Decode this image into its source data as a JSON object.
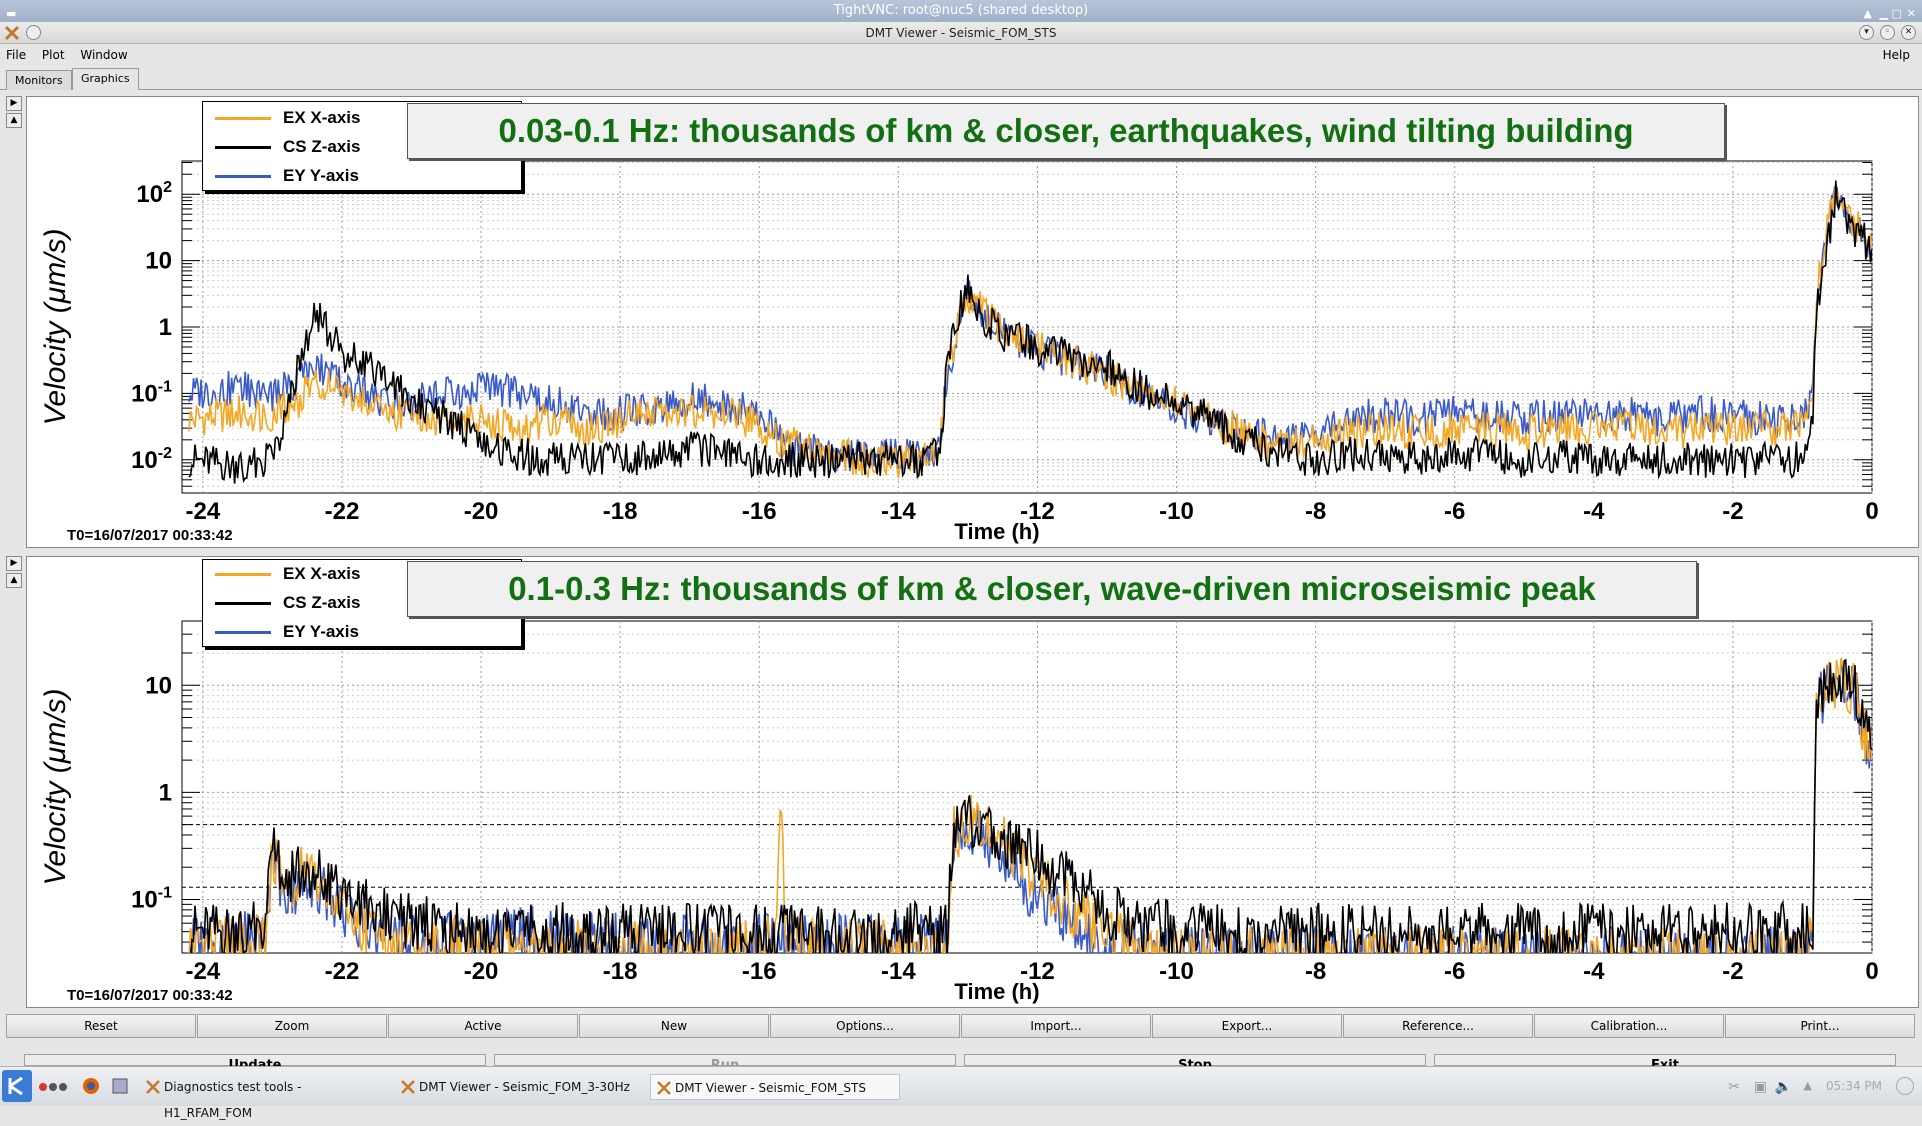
{
  "vnc_title": "TightVNC: root@nuc5 (shared desktop)",
  "window_title": "DMT Viewer - Seismic_FOM_STS",
  "menu": {
    "file": "File",
    "plot": "Plot",
    "window": "Window",
    "help": "Help"
  },
  "tabs": {
    "monitors": "Monitors",
    "graphics": "Graphics"
  },
  "legend": [
    {
      "label": "EX X-axis",
      "color": "#f5a623"
    },
    {
      "label": "CS Z-axis",
      "color": "#000000"
    },
    {
      "label": "EY Y-axis",
      "color": "#3a5bc7"
    }
  ],
  "top_plot": {
    "title": "0.03-0.1 Hz: thousands of km & closer, earthquakes, wind tilting building",
    "ylabel": "Velocity  (μm/s)",
    "xlabel": "Time (h)",
    "t0": "T0=16/07/2017 00:33:42",
    "y_ticks": [
      "10^-2",
      "10^-1",
      "1",
      "10",
      "10^2"
    ],
    "x_ticks": [
      "-24",
      "-22",
      "-20",
      "-18",
      "-16",
      "-14",
      "-12",
      "-10",
      "-8",
      "-6",
      "-4",
      "-2",
      "0"
    ]
  },
  "bottom_plot": {
    "title": "0.1-0.3 Hz: thousands of km & closer, wave-driven microseismic peak",
    "ylabel": "Velocity  (μm/s)",
    "xlabel": "Time (h)",
    "t0": "T0=16/07/2017 00:33:42",
    "y_ticks": [
      "10^-1",
      "1",
      "10"
    ],
    "x_ticks": [
      "-24",
      "-22",
      "-20",
      "-18",
      "-16",
      "-14",
      "-12",
      "-10",
      "-8",
      "-6",
      "-4",
      "-2",
      "0"
    ]
  },
  "buttons": {
    "reset": "Reset",
    "zoom": "Zoom",
    "active": "Active",
    "new": "New",
    "options": "Options...",
    "import": "Import...",
    "export": "Export...",
    "reference": "Reference...",
    "calibration": "Calibration...",
    "print": "Print..."
  },
  "buttons2": {
    "update": "Update",
    "run": "Run",
    "stop": "Stop",
    "exit": "Exit"
  },
  "taskbar": {
    "task1": "Diagnostics test tools - H1_RFAM_FOM",
    "task2": "DMT Viewer - Seismic_FOM_3-30Hz",
    "task3": "DMT Viewer - Seismic_FOM_STS",
    "clock": "05:34 PM"
  },
  "chart_data": [
    {
      "type": "line",
      "title": "0.03-0.1 Hz: thousands of km & closer, earthquakes, wind tilting building",
      "xlabel": "Time (h)",
      "ylabel": "Velocity (μm/s)",
      "xlim": [
        -24.3,
        0
      ],
      "ylim_log10": [
        -2.5,
        2.5
      ],
      "y_scale": "log",
      "grid": true,
      "legend_position": "top-left",
      "series": [
        {
          "name": "EX X-axis",
          "color": "#f5a623",
          "x": [
            -24.2,
            -23.5,
            -23,
            -22.6,
            -22.4,
            -22,
            -21.5,
            -21,
            -20.5,
            -20,
            -19.5,
            -19,
            -18.5,
            -18,
            -17.5,
            -17,
            -16.5,
            -16,
            -15.7,
            -15.5,
            -15,
            -14.5,
            -14,
            -13.6,
            -13.4,
            -13.3,
            -13.1,
            -13.0,
            -12.8,
            -12.5,
            -12.0,
            -11.5,
            -11.0,
            -10.5,
            -10.0,
            -9.5,
            -9.0,
            -8.5,
            -8.0,
            -7.5,
            -7.0,
            -6.5,
            -6.0,
            -5.5,
            -5.0,
            -4.5,
            -4.0,
            -3.5,
            -3.0,
            -2.5,
            -2.0,
            -1.5,
            -1.0,
            -0.85,
            -0.8,
            -0.6,
            -0.5,
            -0.4,
            -0.2,
            0
          ],
          "y": [
            0.04,
            0.05,
            0.05,
            0.08,
            0.15,
            0.1,
            0.06,
            0.05,
            0.04,
            0.04,
            0.03,
            0.04,
            0.03,
            0.04,
            0.05,
            0.05,
            0.05,
            0.035,
            0.02,
            0.02,
            0.012,
            0.01,
            0.01,
            0.012,
            0.015,
            0.2,
            1.5,
            3,
            2,
            0.8,
            0.5,
            0.3,
            0.2,
            0.1,
            0.07,
            0.04,
            0.025,
            0.015,
            0.02,
            0.025,
            0.03,
            0.025,
            0.03,
            0.03,
            0.025,
            0.03,
            0.03,
            0.03,
            0.025,
            0.03,
            0.03,
            0.03,
            0.03,
            0.1,
            3,
            50,
            150,
            60,
            30,
            15
          ]
        },
        {
          "name": "CS Z-axis",
          "color": "#000000",
          "x": [
            -24.2,
            -23.5,
            -23,
            -22.6,
            -22.4,
            -22,
            -21.5,
            -21,
            -20.5,
            -20,
            -19.5,
            -19,
            -18.5,
            -18,
            -17.5,
            -17,
            -16.5,
            -16,
            -15.7,
            -15.5,
            -15,
            -14.5,
            -14,
            -13.6,
            -13.4,
            -13.3,
            -13.1,
            -13.0,
            -12.8,
            -12.5,
            -12.0,
            -11.5,
            -11.0,
            -10.5,
            -10.0,
            -9.5,
            -9.0,
            -8.5,
            -8.0,
            -7.5,
            -7.0,
            -6.5,
            -6.0,
            -5.5,
            -5.0,
            -4.5,
            -4.0,
            -3.5,
            -3.0,
            -2.5,
            -2.0,
            -1.5,
            -1.0,
            -0.85,
            -0.8,
            -0.6,
            -0.5,
            -0.4,
            -0.2,
            0
          ],
          "y": [
            0.01,
            0.008,
            0.01,
            0.3,
            1.8,
            0.4,
            0.2,
            0.08,
            0.04,
            0.02,
            0.012,
            0.01,
            0.01,
            0.01,
            0.012,
            0.015,
            0.012,
            0.01,
            0.01,
            0.01,
            0.01,
            0.01,
            0.01,
            0.01,
            0.012,
            0.3,
            2,
            4,
            1.5,
            0.8,
            0.5,
            0.35,
            0.25,
            0.12,
            0.07,
            0.04,
            0.02,
            0.012,
            0.01,
            0.012,
            0.012,
            0.01,
            0.012,
            0.012,
            0.01,
            0.012,
            0.01,
            0.01,
            0.01,
            0.01,
            0.01,
            0.01,
            0.01,
            0.05,
            2,
            30,
            120,
            50,
            25,
            15
          ]
        },
        {
          "name": "EY Y-axis",
          "color": "#3a5bc7",
          "x": [
            -24.2,
            -23.5,
            -23,
            -22.6,
            -22.4,
            -22,
            -21.5,
            -21,
            -20.5,
            -20,
            -19.5,
            -19,
            -18.5,
            -18,
            -17.5,
            -17,
            -16.5,
            -16,
            -15.7,
            -15.5,
            -15,
            -14.5,
            -14,
            -13.6,
            -13.4,
            -13.3,
            -13.1,
            -13.0,
            -12.8,
            -12.5,
            -12.0,
            -11.5,
            -11.0,
            -10.5,
            -10.0,
            -9.5,
            -9.0,
            -8.5,
            -8.0,
            -7.5,
            -7.0,
            -6.5,
            -6.0,
            -5.5,
            -5.0,
            -4.5,
            -4.0,
            -3.5,
            -3.0,
            -2.5,
            -2.0,
            -1.5,
            -1.0,
            -0.85,
            -0.8,
            -0.6,
            -0.5,
            -0.4,
            -0.2,
            0
          ],
          "y": [
            0.1,
            0.12,
            0.1,
            0.15,
            0.3,
            0.15,
            0.08,
            0.07,
            0.1,
            0.12,
            0.1,
            0.08,
            0.05,
            0.05,
            0.06,
            0.08,
            0.07,
            0.05,
            0.02,
            0.015,
            0.012,
            0.012,
            0.012,
            0.012,
            0.015,
            0.2,
            1.5,
            3.5,
            1.8,
            0.8,
            0.45,
            0.3,
            0.2,
            0.1,
            0.06,
            0.035,
            0.025,
            0.02,
            0.025,
            0.04,
            0.05,
            0.04,
            0.05,
            0.045,
            0.04,
            0.05,
            0.045,
            0.05,
            0.04,
            0.05,
            0.045,
            0.04,
            0.04,
            0.1,
            2,
            40,
            130,
            60,
            30,
            15
          ]
        }
      ]
    },
    {
      "type": "line",
      "title": "0.1-0.3 Hz: thousands of km & closer, wave-driven microseismic peak",
      "xlabel": "Time (h)",
      "ylabel": "Velocity (μm/s)",
      "xlim": [
        -24.3,
        0
      ],
      "ylim_log10": [
        -1.5,
        1.6
      ],
      "y_scale": "log",
      "grid": true,
      "legend_position": "top-left",
      "reference_lines_y": [
        0.5,
        0.13
      ],
      "series": [
        {
          "name": "EX X-axis",
          "color": "#f5a623",
          "x": [
            -24.2,
            -23.5,
            -23.1,
            -23.0,
            -22.8,
            -22.5,
            -22.0,
            -21.5,
            -21,
            -20,
            -19,
            -18,
            -17,
            -16,
            -15.75,
            -15.7,
            -15.6,
            -15,
            -14,
            -13.5,
            -13.3,
            -13.2,
            -13.0,
            -12.8,
            -12.5,
            -12.2,
            -12.0,
            -11.5,
            -11.0,
            -10.5,
            -10,
            -9,
            -8,
            -7,
            -6,
            -5,
            -4,
            -3,
            -2,
            -1,
            -0.85,
            -0.8,
            -0.6,
            -0.4,
            -0.2,
            -0.1,
            0
          ],
          "y": [
            0.04,
            0.04,
            0.05,
            0.25,
            0.12,
            0.2,
            0.08,
            0.05,
            0.04,
            0.035,
            0.035,
            0.035,
            0.035,
            0.035,
            0.04,
            0.6,
            0.04,
            0.035,
            0.035,
            0.035,
            0.035,
            0.4,
            0.6,
            0.5,
            0.35,
            0.2,
            0.15,
            0.08,
            0.05,
            0.035,
            0.03,
            0.03,
            0.03,
            0.03,
            0.03,
            0.03,
            0.03,
            0.03,
            0.03,
            0.03,
            0.04,
            8,
            10,
            12,
            8,
            3,
            2
          ]
        },
        {
          "name": "CS Z-axis",
          "color": "#000000",
          "x": [
            -24.2,
            -23.5,
            -23.1,
            -23.0,
            -22.8,
            -22.5,
            -22.0,
            -21.5,
            -21,
            -20,
            -19,
            -18,
            -17,
            -16,
            -15.75,
            -15.7,
            -15.6,
            -15,
            -14,
            -13.5,
            -13.3,
            -13.2,
            -13.0,
            -12.8,
            -12.5,
            -12.2,
            -12.0,
            -11.5,
            -11.0,
            -10.5,
            -10,
            -9,
            -8,
            -7,
            -6,
            -5,
            -4,
            -3,
            -2,
            -1,
            -0.85,
            -0.8,
            -0.6,
            -0.4,
            -0.2,
            -0.1,
            0
          ],
          "y": [
            0.05,
            0.05,
            0.06,
            0.4,
            0.15,
            0.2,
            0.1,
            0.08,
            0.06,
            0.05,
            0.05,
            0.05,
            0.05,
            0.05,
            0.05,
            0.05,
            0.05,
            0.05,
            0.05,
            0.05,
            0.05,
            0.5,
            0.6,
            0.4,
            0.35,
            0.3,
            0.25,
            0.15,
            0.08,
            0.06,
            0.05,
            0.05,
            0.05,
            0.05,
            0.05,
            0.05,
            0.05,
            0.05,
            0.05,
            0.05,
            0.05,
            8,
            10,
            12,
            8,
            4,
            2.5
          ]
        },
        {
          "name": "EY Y-axis",
          "color": "#3a5bc7",
          "x": [
            -24.2,
            -23.5,
            -23.1,
            -23.0,
            -22.8,
            -22.5,
            -22.0,
            -21.5,
            -21,
            -20,
            -19,
            -18,
            -17,
            -16,
            -15.75,
            -15.7,
            -15.6,
            -15,
            -14,
            -13.5,
            -13.3,
            -13.2,
            -13.0,
            -12.8,
            -12.5,
            -12.2,
            -12.0,
            -11.5,
            -11.0,
            -10.5,
            -10,
            -9,
            -8,
            -7,
            -6,
            -5,
            -4,
            -3,
            -2,
            -1,
            -0.85,
            -0.8,
            -0.6,
            -0.4,
            -0.2,
            -0.1,
            0
          ],
          "y": [
            0.04,
            0.04,
            0.05,
            0.2,
            0.12,
            0.15,
            0.08,
            0.05,
            0.04,
            0.04,
            0.05,
            0.04,
            0.04,
            0.04,
            0.04,
            0.04,
            0.04,
            0.04,
            0.04,
            0.04,
            0.04,
            0.35,
            0.5,
            0.4,
            0.25,
            0.15,
            0.1,
            0.06,
            0.04,
            0.035,
            0.03,
            0.03,
            0.03,
            0.03,
            0.03,
            0.03,
            0.03,
            0.03,
            0.03,
            0.03,
            0.04,
            7,
            9,
            11,
            7,
            3,
            2
          ]
        }
      ]
    }
  ]
}
